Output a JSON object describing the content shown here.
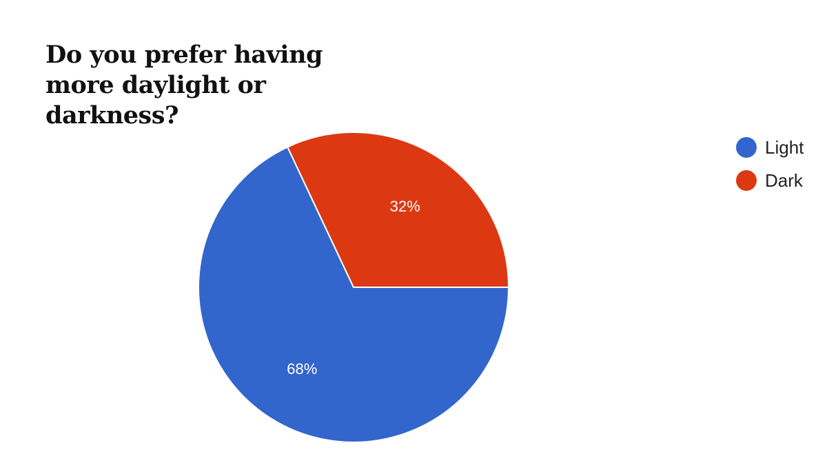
{
  "chart_data": {
    "type": "pie",
    "title": "Do you prefer having more daylight or darkness?",
    "categories": [
      "Light",
      "Dark"
    ],
    "values": [
      68,
      32
    ],
    "labels": [
      "68%",
      "32%"
    ],
    "colors": [
      "#3366cc",
      "#dc3912"
    ],
    "legend": "right"
  }
}
